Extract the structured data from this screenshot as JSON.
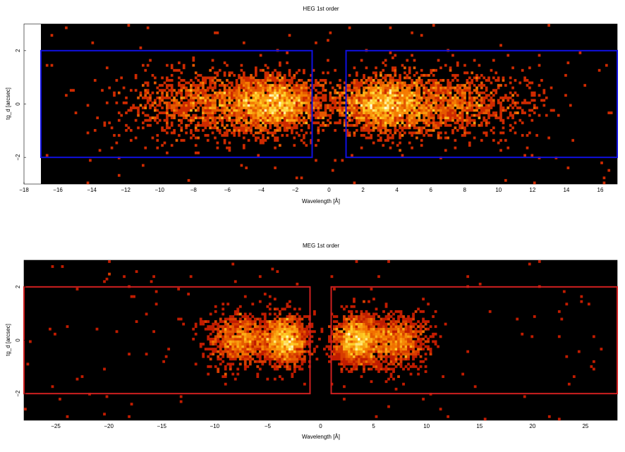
{
  "chart_data": [
    {
      "type": "heatmap",
      "title": "HEG 1st order",
      "xlabel": "Wavelength [Å]",
      "ylabel": "tg_d [arcsec]",
      "xlim": [
        -18,
        17
      ],
      "ylim": [
        -3,
        3
      ],
      "data_xlim": [
        -17,
        17
      ],
      "xticks": [
        -18,
        -16,
        -14,
        -12,
        -10,
        -8,
        -6,
        -4,
        -2,
        0,
        2,
        4,
        6,
        8,
        10,
        12,
        14,
        16
      ],
      "yticks": [
        -2,
        0,
        2
      ],
      "background": "#000000",
      "extraction_color": "#1010e0",
      "extraction_regions": [
        {
          "x": [
            -17,
            -1
          ],
          "y": [
            -2,
            2
          ]
        },
        {
          "x": [
            1,
            17
          ],
          "y": [
            -2,
            2
          ]
        }
      ],
      "sources": [
        {
          "x": -3,
          "y": 0,
          "sx": 1.3,
          "sy": 0.5,
          "n": 1500
        },
        {
          "x": -6.5,
          "y": 0,
          "sx": 2.6,
          "sy": 0.6,
          "n": 1500
        },
        {
          "x": 3,
          "y": 0,
          "sx": 1.3,
          "sy": 0.5,
          "n": 1500
        },
        {
          "x": 6.5,
          "y": 0,
          "sx": 2.6,
          "sy": 0.6,
          "n": 1500
        }
      ],
      "background_counts": 140
    },
    {
      "type": "heatmap",
      "title": "MEG 1st order",
      "xlabel": "Wavelength [Å]",
      "ylabel": "tg_d [arcsec]",
      "xlim": [
        -28,
        28
      ],
      "ylim": [
        -3,
        3
      ],
      "data_xlim": [
        -28,
        28
      ],
      "xticks": [
        -25,
        -20,
        -15,
        -10,
        -5,
        0,
        5,
        10,
        15,
        20,
        25
      ],
      "yticks": [
        -2,
        0,
        2
      ],
      "background": "#000000",
      "extraction_color": "#d02020",
      "extraction_regions": [
        {
          "x": [
            -28,
            -1
          ],
          "y": [
            -2,
            2
          ]
        },
        {
          "x": [
            1,
            28
          ],
          "y": [
            -2,
            2
          ]
        }
      ],
      "sources": [
        {
          "x": -3.3,
          "y": 0,
          "sx": 1.0,
          "sy": 0.45,
          "n": 1300
        },
        {
          "x": -7.5,
          "y": 0,
          "sx": 1.6,
          "sy": 0.5,
          "n": 1000
        },
        {
          "x": 3.3,
          "y": 0,
          "sx": 1.0,
          "sy": 0.45,
          "n": 1300
        },
        {
          "x": 7.0,
          "y": 0,
          "sx": 1.6,
          "sy": 0.5,
          "n": 1000
        }
      ],
      "background_counts": 160
    }
  ]
}
